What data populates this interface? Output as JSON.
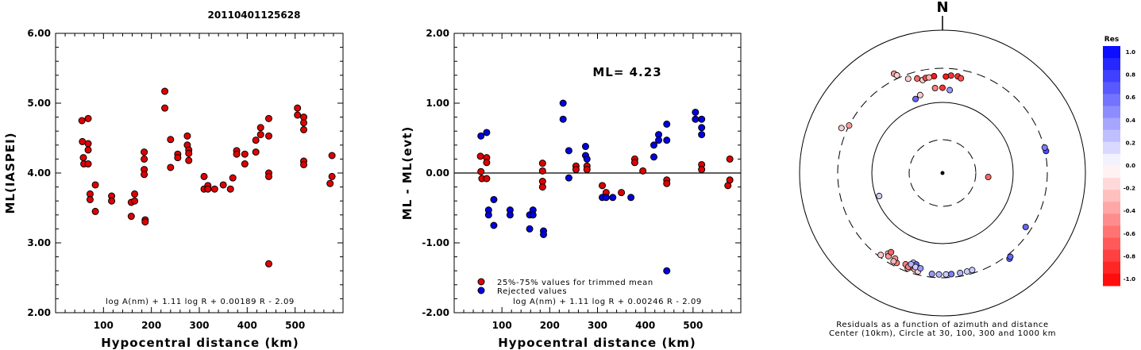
{
  "page_title": "20110401125628",
  "chart_data": [
    {
      "type": "scatter",
      "xlabel": "Hypocentral distance (km)",
      "ylabel": "ML(IASPEI)",
      "xlim": [
        0,
        600
      ],
      "ylim": [
        2.0,
        6.0
      ],
      "xticks": [
        "100",
        "200",
        "300",
        "400",
        "500"
      ],
      "yticks": [
        "2.00",
        "3.00",
        "4.00",
        "5.00",
        "6.00"
      ],
      "formula": "log A(nm) + 1.11 log R + 0.00189 R - 2.09",
      "marker_color": "#e00000",
      "points": [
        [
          55,
          4.75
        ],
        [
          56,
          4.45
        ],
        [
          58,
          4.22
        ],
        [
          59,
          4.13
        ],
        [
          68,
          4.78
        ],
        [
          68,
          4.42
        ],
        [
          68,
          4.33
        ],
        [
          68,
          4.13
        ],
        [
          72,
          3.7
        ],
        [
          72,
          3.62
        ],
        [
          83,
          3.83
        ],
        [
          83,
          3.45
        ],
        [
          117,
          3.67
        ],
        [
          117,
          3.6
        ],
        [
          158,
          3.58
        ],
        [
          158,
          3.38
        ],
        [
          165,
          3.7
        ],
        [
          165,
          3.6
        ],
        [
          185,
          4.3
        ],
        [
          185,
          4.2
        ],
        [
          185,
          4.05
        ],
        [
          185,
          3.98
        ],
        [
          187,
          3.33
        ],
        [
          187,
          3.3
        ],
        [
          228,
          5.17
        ],
        [
          228,
          4.93
        ],
        [
          240,
          4.48
        ],
        [
          240,
          4.08
        ],
        [
          255,
          4.27
        ],
        [
          255,
          4.22
        ],
        [
          275,
          4.53
        ],
        [
          275,
          4.4
        ],
        [
          278,
          4.33
        ],
        [
          278,
          4.28
        ],
        [
          278,
          4.18
        ],
        [
          310,
          3.95
        ],
        [
          310,
          3.77
        ],
        [
          318,
          3.82
        ],
        [
          318,
          3.77
        ],
        [
          332,
          3.77
        ],
        [
          350,
          3.83
        ],
        [
          365,
          3.77
        ],
        [
          370,
          3.93
        ],
        [
          378,
          4.32
        ],
        [
          378,
          4.27
        ],
        [
          395,
          4.27
        ],
        [
          395,
          4.13
        ],
        [
          418,
          4.47
        ],
        [
          418,
          4.3
        ],
        [
          428,
          4.65
        ],
        [
          428,
          4.55
        ],
        [
          445,
          4.78
        ],
        [
          445,
          4.53
        ],
        [
          445,
          4.0
        ],
        [
          445,
          3.95
        ],
        [
          445,
          2.7
        ],
        [
          505,
          4.93
        ],
        [
          505,
          4.83
        ],
        [
          518,
          4.8
        ],
        [
          518,
          4.72
        ],
        [
          518,
          4.62
        ],
        [
          518,
          4.17
        ],
        [
          518,
          4.12
        ],
        [
          573,
          3.85
        ],
        [
          577,
          4.25
        ],
        [
          577,
          3.95
        ]
      ]
    },
    {
      "type": "scatter",
      "xlabel": "Hypocentral distance (km)",
      "ylabel": "ML - ML(evt)",
      "xlim": [
        0,
        600
      ],
      "ylim": [
        -2.0,
        2.0
      ],
      "xticks": [
        "100",
        "200",
        "300",
        "400",
        "500"
      ],
      "yticks": [
        "-2.00",
        "-1.00",
        "0.00",
        "1.00",
        "2.00"
      ],
      "ml_label": "ML= 4.23",
      "formula": "log A(nm) + 1.11 log R + 0.00246 R - 2.09",
      "legend": [
        "25%-75% values for trimmed mean",
        "Rejected values"
      ],
      "series": [
        {
          "name": "25%-75% values for trimmed mean",
          "color": "#e00000",
          "points": [
            [
              55,
              0.24
            ],
            [
              56,
              0.02
            ],
            [
              58,
              -0.08
            ],
            [
              68,
              0.22
            ],
            [
              68,
              0.15
            ],
            [
              68,
              -0.08
            ],
            [
              185,
              0.14
            ],
            [
              185,
              0.03
            ],
            [
              185,
              -0.12
            ],
            [
              185,
              -0.2
            ],
            [
              255,
              0.1
            ],
            [
              255,
              0.05
            ],
            [
              278,
              0.1
            ],
            [
              278,
              0.05
            ],
            [
              310,
              -0.18
            ],
            [
              318,
              -0.28
            ],
            [
              350,
              -0.28
            ],
            [
              378,
              0.2
            ],
            [
              378,
              0.15
            ],
            [
              395,
              0.03
            ],
            [
              445,
              -0.1
            ],
            [
              445,
              -0.15
            ],
            [
              518,
              0.12
            ],
            [
              518,
              0.05
            ],
            [
              573,
              -0.18
            ],
            [
              577,
              0.2
            ],
            [
              577,
              -0.1
            ]
          ]
        },
        {
          "name": "Rejected values",
          "color": "#0000e0",
          "points": [
            [
              56,
              0.53
            ],
            [
              68,
              0.58
            ],
            [
              72,
              -0.53
            ],
            [
              72,
              -0.6
            ],
            [
              83,
              -0.38
            ],
            [
              83,
              -0.75
            ],
            [
              117,
              -0.53
            ],
            [
              117,
              -0.6
            ],
            [
              158,
              -0.6
            ],
            [
              158,
              -0.8
            ],
            [
              165,
              -0.53
            ],
            [
              165,
              -0.6
            ],
            [
              187,
              -0.83
            ],
            [
              187,
              -0.88
            ],
            [
              228,
              1.0
            ],
            [
              228,
              0.77
            ],
            [
              240,
              0.32
            ],
            [
              240,
              -0.07
            ],
            [
              275,
              0.38
            ],
            [
              275,
              0.25
            ],
            [
              278,
              0.2
            ],
            [
              310,
              -0.35
            ],
            [
              318,
              -0.35
            ],
            [
              332,
              -0.35
            ],
            [
              370,
              -0.35
            ],
            [
              418,
              0.4
            ],
            [
              418,
              0.23
            ],
            [
              428,
              0.55
            ],
            [
              428,
              0.47
            ],
            [
              445,
              0.7
            ],
            [
              445,
              0.47
            ],
            [
              445,
              -1.4
            ],
            [
              505,
              0.87
            ],
            [
              505,
              0.77
            ],
            [
              518,
              0.77
            ],
            [
              518,
              0.65
            ],
            [
              518,
              0.55
            ]
          ]
        }
      ]
    },
    {
      "type": "polar-scatter",
      "north_label": "N",
      "caption_line1": "Residuals as a function of azimuth and distance",
      "caption_line2": "Center (10km), Circle at 30, 100, 300 and 1000 km",
      "colorbar_title": "Res",
      "colorbar_ticks": [
        "1.0",
        "0.8",
        "0.6",
        "0.4",
        "0.2",
        "0.0",
        "-0.2",
        "-0.4",
        "-0.6",
        "-0.8",
        "-1.0"
      ],
      "rings_km": [
        30,
        100,
        300,
        1000
      ],
      "points": [
        {
          "az": 0,
          "r": 10,
          "res": 0.0,
          "kind": "center"
        },
        {
          "az": 95,
          "r": 45,
          "res": -0.6
        },
        {
          "az": 345,
          "r": 240,
          "res": -0.6
        },
        {
          "az": 355,
          "r": 160,
          "res": -0.5
        },
        {
          "az": 348,
          "r": 220,
          "res": -0.2
        },
        {
          "az": 340,
          "r": 260,
          "res": -0.2
        },
        {
          "az": 334,
          "r": 360,
          "res": -0.4
        },
        {
          "az": 335,
          "r": 330,
          "res": -0.2
        },
        {
          "az": 0,
          "r": 160,
          "res": -0.8
        },
        {
          "az": 2,
          "r": 230,
          "res": -0.9
        },
        {
          "az": 5,
          "r": 240,
          "res": -0.8
        },
        {
          "az": 9,
          "r": 240,
          "res": -0.8
        },
        {
          "az": 11,
          "r": 230,
          "res": -0.7
        },
        {
          "az": 355,
          "r": 235,
          "res": -0.9
        },
        {
          "az": 350,
          "r": 230,
          "res": -0.7
        },
        {
          "az": 352,
          "r": 230,
          "res": -0.3
        },
        {
          "az": 5,
          "r": 150,
          "res": 0.4
        },
        {
          "az": 340,
          "r": 130,
          "res": 0.6
        },
        {
          "az": 344,
          "r": 140,
          "res": -0.2
        },
        {
          "az": 297,
          "r": 300,
          "res": -0.4
        },
        {
          "az": 294,
          "r": 360,
          "res": -0.2
        },
        {
          "az": 78,
          "r": 310,
          "res": 0.7
        },
        {
          "az": 76,
          "r": 305,
          "res": 0.5
        },
        {
          "az": 250,
          "r": 90,
          "res": 0.2
        },
        {
          "az": 123,
          "r": 250,
          "res": 0.6
        },
        {
          "az": 142,
          "r": 340,
          "res": 0.6
        },
        {
          "az": 141,
          "r": 330,
          "res": 0.6
        },
        {
          "az": 214,
          "r": 235,
          "res": -0.3
        },
        {
          "az": 213,
          "r": 250,
          "res": -0.4
        },
        {
          "az": 207,
          "r": 265,
          "res": -0.5
        },
        {
          "az": 200,
          "r": 270,
          "res": -0.3
        },
        {
          "az": 213,
          "r": 215,
          "res": -0.6
        },
        {
          "az": 209,
          "r": 240,
          "res": -0.4
        },
        {
          "az": 202,
          "r": 245,
          "res": -0.5
        },
        {
          "az": 198,
          "r": 250,
          "res": -0.6
        },
        {
          "az": 200,
          "r": 255,
          "res": -0.5
        },
        {
          "az": 196,
          "r": 260,
          "res": -0.2
        },
        {
          "az": 194,
          "r": 270,
          "res": -0.2
        },
        {
          "az": 209,
          "r": 265,
          "res": -0.3
        },
        {
          "az": 217,
          "r": 280,
          "res": -0.2
        },
        {
          "az": 198,
          "r": 215,
          "res": 0.2
        },
        {
          "az": 196,
          "r": 220,
          "res": 0.6
        },
        {
          "az": 199,
          "r": 230,
          "res": 0.3
        },
        {
          "az": 196,
          "r": 240,
          "res": 0.2
        },
        {
          "az": 193,
          "r": 240,
          "res": 0.4
        },
        {
          "az": 182,
          "r": 270,
          "res": 0.3
        },
        {
          "az": 178,
          "r": 270,
          "res": 0.2
        },
        {
          "az": 175,
          "r": 270,
          "res": 0.5
        },
        {
          "az": 170,
          "r": 270,
          "res": 0.3
        },
        {
          "az": 166,
          "r": 270,
          "res": 0.2
        },
        {
          "az": 163,
          "r": 270,
          "res": 0.2
        },
        {
          "az": 186,
          "r": 270,
          "res": 0.4
        }
      ]
    }
  ]
}
